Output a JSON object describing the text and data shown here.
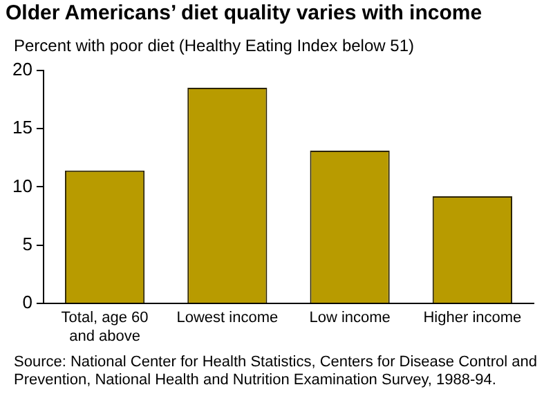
{
  "chart_data": {
    "type": "bar",
    "title": "Older Americans’ diet quality varies with income",
    "ylabel": "Percent with poor diet (Healthy Eating Index below 51)",
    "categories": [
      "Total, age 60 and above",
      "Lowest income",
      "Low income",
      "Higher income"
    ],
    "values": [
      11.4,
      18.5,
      13.1,
      9.2
    ],
    "color": "#b89b00",
    "ylim": [
      0,
      20
    ],
    "yticks": [
      0,
      5,
      10,
      15,
      20
    ],
    "grid": false,
    "legend": false,
    "annotations": [
      "Source: National Center for Health Statistics, Centers for Disease Control and Prevention, National Health and Nutrition Examination Survey, 1988-94."
    ]
  }
}
